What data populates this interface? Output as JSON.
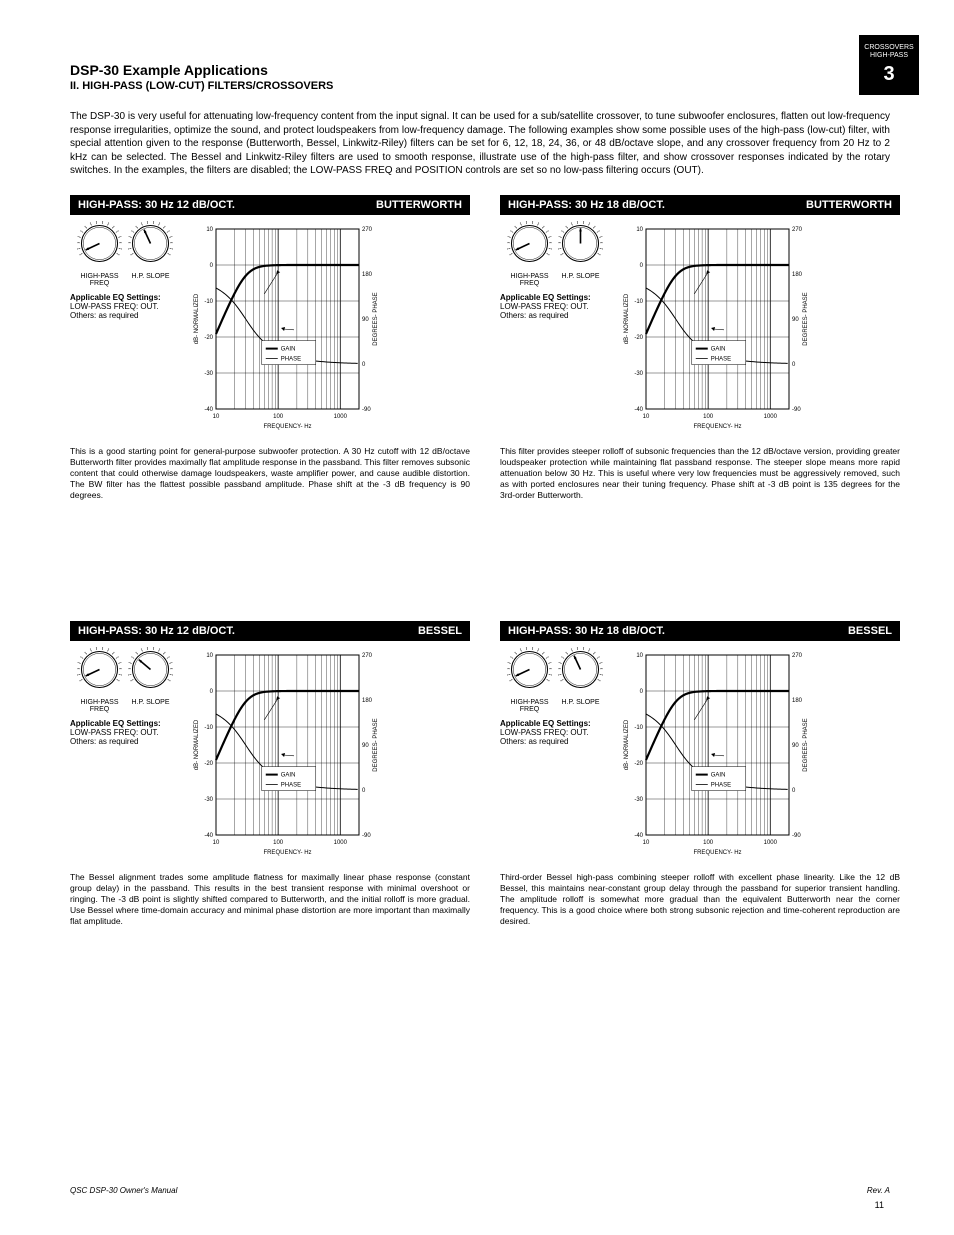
{
  "page": {
    "corner_label": "CROSSOVERS",
    "corner_sub": "HIGH-PASS",
    "corner_num": "3",
    "title": "DSP-30 Example Applications",
    "subtitle": "II. HIGH-PASS (LOW-CUT) FILTERS/CROSSOVERS",
    "intro": "The DSP-30 is very useful for attenuating low-frequency content from the input signal. It can be used for a sub/satellite crossover, to tune subwoofer enclosures, flatten out low-frequency response irregularities, optimize the sound, and protect loudspeakers from low-frequency damage. The following examples show some possible uses of the high-pass (low-cut) filter, with special attention given to the response (Butterworth, Bessel, Linkwitz-Riley) filters can be set for 6, 12, 18, 24, 36, or 48 dB/octave slope, and any crossover frequency from 20 Hz to 2 kHz can be selected. The Bessel and Linkwitz-Riley filters are used to smooth response, illustrate use of the high-pass filter, and show crossover responses indicated by the rotary switches. In the examples, the filters are disabled; the LOW-PASS FREQ and POSITION controls are set so no low-pass filtering occurs (OUT).",
    "footer_left": "QSC DSP-30 Owner's Manual",
    "footer_right": "Rev. A",
    "page_number": "11"
  },
  "chart_axes": {
    "xlabel": "FREQUENCY- Hz",
    "ylabel_left": "dB- NORMALIZED",
    "ylabel_right": "DEGREES- PHASE",
    "xticks": [
      "10",
      "100",
      "1000"
    ],
    "yticks_left": [
      "10",
      "0",
      "-10",
      "-20",
      "-30",
      "-40"
    ],
    "yticks_right": [
      "270",
      "180",
      "90",
      "0",
      "-90"
    ],
    "legend": [
      "GAIN",
      "PHASE"
    ],
    "plot_bg": "#ffffff",
    "grid_color": "#000000",
    "curve_color": "#000000",
    "curve_width_gain": 2.2,
    "curve_width_phase": 1.0
  },
  "cells": [
    {
      "hdr_left": "HIGH-PASS: 30 Hz 12 dB/OCT.",
      "hdr_right": "BUTTERWORTH",
      "knob_hp_freq_angle": -115,
      "knob_hp_slope_angle": -25,
      "hp_freq_label": "HIGH-PASS FREQ",
      "hp_slope_label": "H.P. SLOPE",
      "eq_title": "Applicable EQ Settings:",
      "eq_text": "LOW-PASS FREQ: OUT. Others: as required",
      "desc": "This is a good starting point for general-purpose subwoofer protection. A 30 Hz cutoff with 12 dB/octave Butterworth filter provides maximally flat amplitude response in the passband. This filter removes subsonic content that could otherwise damage loudspeakers, waste amplifier power, and cause audible distortion. The BW filter has the flattest possible passband amplitude. Phase shift at the -3 dB frequency is 90 degrees."
    },
    {
      "hdr_left": "HIGH-PASS: 30 Hz 18 dB/OCT.",
      "hdr_right": "BUTTERWORTH",
      "knob_hp_freq_angle": -115,
      "knob_hp_slope_angle": 0,
      "hp_freq_label": "HIGH-PASS FREQ",
      "hp_slope_label": "H.P. SLOPE",
      "eq_title": "Applicable EQ Settings:",
      "eq_text": "LOW-PASS FREQ: OUT. Others: as required",
      "desc": "This filter provides steeper rolloff of subsonic frequencies than the 12 dB/octave version, providing greater loudspeaker protection while maintaining flat passband response. The steeper slope means more rapid attenuation below 30 Hz. This is useful where very low frequencies must be aggressively removed, such as with ported enclosures near their tuning frequency. Phase shift at -3 dB point is 135 degrees for the 3rd-order Butterworth."
    },
    {
      "hdr_left": "HIGH-PASS: 30 Hz 12 dB/OCT.",
      "hdr_right": "BESSEL",
      "knob_hp_freq_angle": -115,
      "knob_hp_slope_angle": -50,
      "hp_freq_label": "HIGH-PASS FREQ",
      "hp_slope_label": "H.P. SLOPE",
      "eq_title": "Applicable EQ Settings:",
      "eq_text": "LOW-PASS FREQ: OUT. Others: as required",
      "desc": "The Bessel alignment trades some amplitude flatness for maximally linear phase response (constant group delay) in the passband. This results in the best transient response with minimal overshoot or ringing. The -3 dB point is slightly shifted compared to Butterworth, and the initial rolloff is more gradual. Use Bessel where time-domain accuracy and minimal phase distortion are more important than maximally flat amplitude."
    },
    {
      "hdr_left": "HIGH-PASS: 30 Hz 18 dB/OCT.",
      "hdr_right": "BESSEL",
      "knob_hp_freq_angle": -115,
      "knob_hp_slope_angle": -25,
      "hp_freq_label": "HIGH-PASS FREQ",
      "hp_slope_label": "H.P. SLOPE",
      "eq_title": "Applicable EQ Settings:",
      "eq_text": "LOW-PASS FREQ: OUT. Others: as required",
      "desc": "Third-order Bessel high-pass combining steeper rolloff with excellent phase linearity. Like the 12 dB Bessel, this maintains near-constant group delay through the passband for superior transient handling. The amplitude rolloff is somewhat more gradual than the equivalent Butterworth near the corner frequency. This is a good choice where both strong subsonic rejection and time-coherent reproduction are desired."
    }
  ]
}
